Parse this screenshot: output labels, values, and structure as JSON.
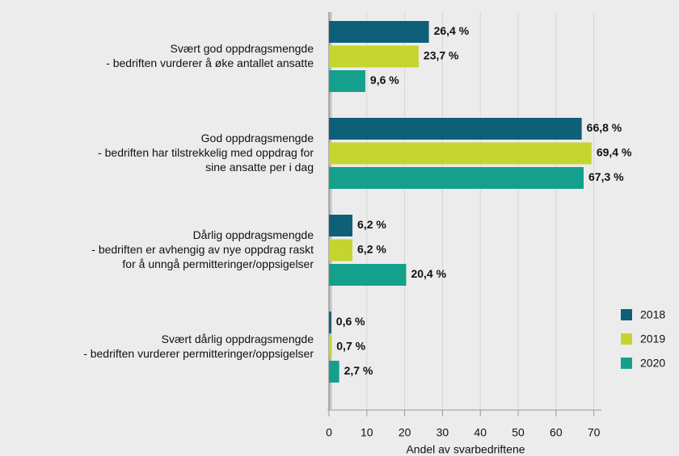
{
  "chart_data": {
    "type": "barh",
    "categories": [
      [
        "Svært god oppdragsmengde",
        "- bedriften vurderer å øke antallet ansatte"
      ],
      [
        "God oppdragsmengde",
        "- bedriften har tilstrekkelig med oppdrag for",
        "sine ansatte per i dag"
      ],
      [
        "Dårlig oppdragsmengde",
        "- bedriften er avhengig av nye oppdrag raskt",
        "for å unngå permitteringer/oppsigelser"
      ],
      [
        "Svært dårlig oppdragsmengde",
        "- bedriften vurderer permitteringer/oppsigelser"
      ]
    ],
    "series": [
      {
        "name": "2018",
        "color": "#0e5f78",
        "values": [
          26.4,
          66.8,
          6.2,
          0.6
        ],
        "value_labels": [
          "26,4 %",
          "66,8 %",
          "6,2 %",
          "0,6 %"
        ]
      },
      {
        "name": "2019",
        "color": "#c5d52f",
        "values": [
          23.7,
          69.4,
          6.2,
          0.7
        ],
        "value_labels": [
          "23,7 %",
          "69,4 %",
          "6,2 %",
          "0,7 %"
        ]
      },
      {
        "name": "2020",
        "color": "#14a08c",
        "values": [
          9.6,
          67.3,
          20.4,
          2.7
        ],
        "value_labels": [
          "9,6 %",
          "67,3 %",
          "20,4 %",
          "2,7 %"
        ]
      }
    ],
    "xlabel": "Andel av svarbedriftene",
    "xlim": [
      0,
      72
    ],
    "xticks": [
      0,
      10,
      20,
      30,
      40,
      50,
      60,
      70
    ],
    "grid": true,
    "legend": "right"
  }
}
